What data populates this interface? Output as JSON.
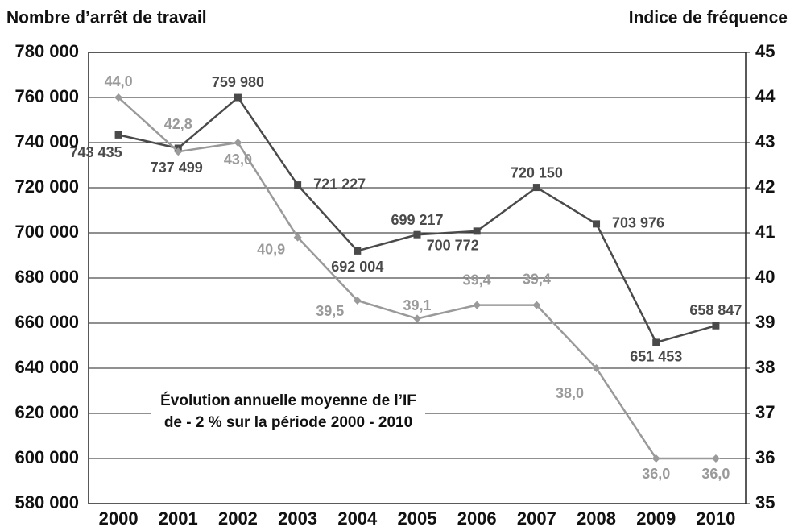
{
  "chart_data": {
    "type": "line",
    "y_label": "Nombre d’arrêt de travail",
    "y2_label": "Indice de fréquence",
    "annotation": [
      "Évolution annuelle moyenne de l’IF",
      "de - 2 % sur la période 2000 - 2010"
    ],
    "categories": [
      "2000",
      "2001",
      "2002",
      "2003",
      "2004",
      "2005",
      "2006",
      "2007",
      "2008",
      "2009",
      "2010"
    ],
    "series": [
      {
        "name": "Nombre d’arrêt de travail",
        "color": "#4a4a4a",
        "axis": "y",
        "values": [
          743435,
          737499,
          759980,
          721227,
          692004,
          699217,
          700772,
          720150,
          703976,
          651453,
          658847
        ],
        "value_labels": [
          "743 435",
          "737 499",
          "759 980",
          "721 227",
          "692 004",
          "699 217",
          "700 772",
          "720 150",
          "703 976",
          "651 453",
          "658 847"
        ]
      },
      {
        "name": "Indice de fréquence",
        "color": "#9a9a9a",
        "axis": "y2",
        "values": [
          44.0,
          42.8,
          43.0,
          40.9,
          39.5,
          39.1,
          39.4,
          39.4,
          38.0,
          36.0,
          36.0
        ],
        "value_labels": [
          "44,0",
          "42,8",
          "43,0",
          "40,9",
          "39,5",
          "39,1",
          "39,4",
          "39,4",
          "38,0",
          "36,0",
          "36,0"
        ]
      }
    ],
    "ylim": [
      580000,
      780000
    ],
    "yticks": [
      {
        "value": 580000,
        "label": "580 000"
      },
      {
        "value": 600000,
        "label": "600 000"
      },
      {
        "value": 620000,
        "label": "620 000"
      },
      {
        "value": 640000,
        "label": "640 000"
      },
      {
        "value": 660000,
        "label": "660 000"
      },
      {
        "value": 680000,
        "label": "680 000"
      },
      {
        "value": 700000,
        "label": "700 000"
      },
      {
        "value": 720000,
        "label": "720 000"
      },
      {
        "value": 740000,
        "label": "740 000"
      },
      {
        "value": 760000,
        "label": "760 000"
      },
      {
        "value": 780000,
        "label": "780 000"
      }
    ],
    "y2lim": [
      35,
      45
    ],
    "y2ticks": [
      35,
      36,
      37,
      38,
      39,
      40,
      41,
      42,
      43,
      44,
      45
    ],
    "grid": true
  }
}
